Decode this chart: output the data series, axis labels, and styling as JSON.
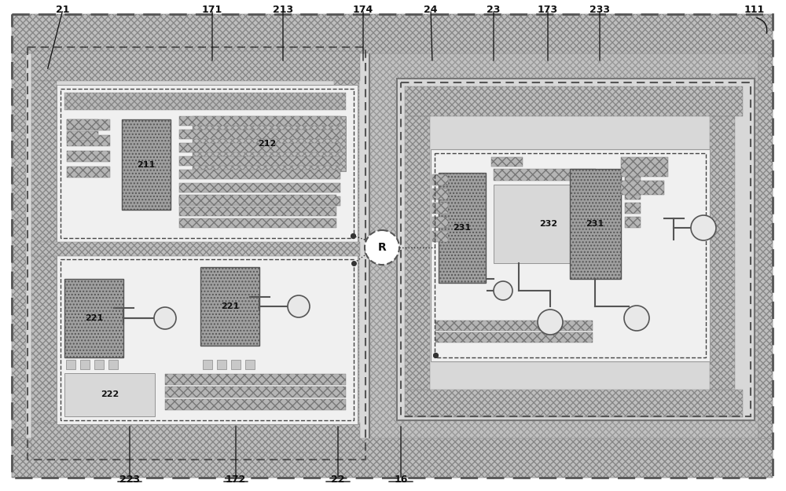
{
  "fig_w": 10.0,
  "fig_h": 6.25,
  "dpi": 100,
  "hatch_bg": "#c0c0c0",
  "hatch_pattern": "xxxx",
  "inner_bg": "#e0e0e0",
  "chip_bg": "#f2f2f2",
  "white_bg": "#f8f8f8",
  "grid_chip": "#a8a8a8",
  "stripe_chip": "#b5b5b5",
  "label_fs": 9,
  "inner_label_fs": 8,
  "small_label_fs": 7
}
